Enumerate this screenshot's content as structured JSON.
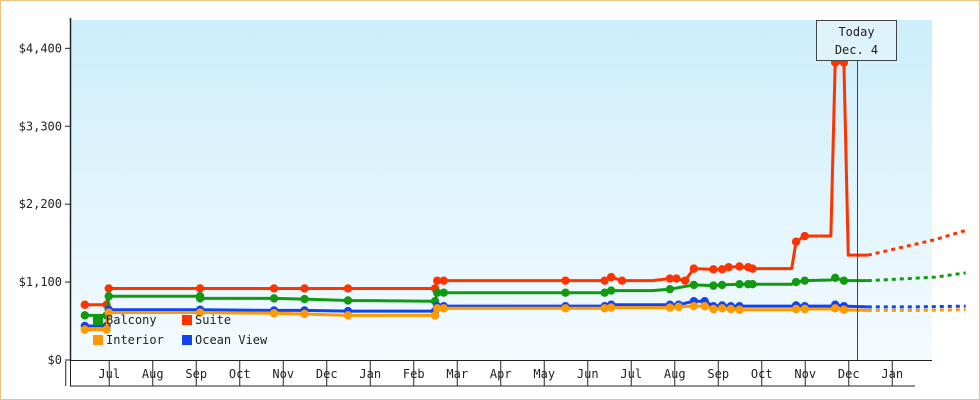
{
  "chart_data": {
    "type": "line",
    "title": "",
    "xlabel": "",
    "ylabel": "",
    "ylim": [
      0,
      4400
    ],
    "y_ticks": [
      {
        "value": 0,
        "label": "$0"
      },
      {
        "value": 1100,
        "label": "$1,100"
      },
      {
        "value": 2200,
        "label": "$2,200"
      },
      {
        "value": 3300,
        "label": "$3,300"
      },
      {
        "value": 4400,
        "label": "$4,400"
      }
    ],
    "x_range": [
      0,
      20
    ],
    "months": [
      {
        "label": "Jul",
        "x": 1
      },
      {
        "label": "Aug",
        "x": 2
      },
      {
        "label": "Sep",
        "x": 3
      },
      {
        "label": "Oct",
        "x": 4
      },
      {
        "label": "Nov",
        "x": 5
      },
      {
        "label": "Dec",
        "x": 6
      },
      {
        "label": "Jan",
        "x": 7
      },
      {
        "label": "Feb",
        "x": 8
      },
      {
        "label": "Mar",
        "x": 9
      },
      {
        "label": "Apr",
        "x": 10
      },
      {
        "label": "May",
        "x": 11
      },
      {
        "label": "Jun",
        "x": 12
      },
      {
        "label": "Jul",
        "x": 13
      },
      {
        "label": "Aug",
        "x": 14
      },
      {
        "label": "Sep",
        "x": 15
      },
      {
        "label": "Oct",
        "x": 16
      },
      {
        "label": "Nov",
        "x": 17
      },
      {
        "label": "Dec",
        "x": 18
      },
      {
        "label": "Jan",
        "x": 19
      }
    ],
    "today": {
      "x": 17.7,
      "line1": "Today",
      "line2": "Dec. 4"
    },
    "grid": false,
    "legend_position": "bottom-left",
    "background_gradient": [
      "#cdeefb",
      "#f4fbff"
    ],
    "series": [
      {
        "name": "Suite",
        "color": "#ff3300",
        "points": [
          [
            -0.05,
            780
          ],
          [
            0.45,
            780
          ],
          [
            0.5,
            1010
          ],
          [
            2.6,
            1010
          ],
          [
            4.3,
            1010
          ],
          [
            5.0,
            1010
          ],
          [
            6.0,
            1010
          ],
          [
            8.0,
            1010
          ],
          [
            8.05,
            1120
          ],
          [
            8.2,
            1120
          ],
          [
            11.0,
            1120
          ],
          [
            11.9,
            1120
          ],
          [
            12.05,
            1170
          ],
          [
            12.3,
            1120
          ],
          [
            13.0,
            1120
          ],
          [
            13.4,
            1150
          ],
          [
            13.55,
            1150
          ],
          [
            13.75,
            1120
          ],
          [
            13.95,
            1290
          ],
          [
            14.4,
            1280
          ],
          [
            14.6,
            1280
          ],
          [
            14.75,
            1310
          ],
          [
            15.0,
            1320
          ],
          [
            15.3,
            1290
          ],
          [
            16.2,
            1290
          ],
          [
            16.3,
            1670
          ],
          [
            16.5,
            1750
          ],
          [
            17.1,
            1750
          ],
          [
            17.2,
            4200
          ],
          [
            17.4,
            4200
          ],
          [
            17.5,
            1480
          ],
          [
            17.95,
            1480
          ]
        ],
        "markers": [
          [
            -0.05,
            780
          ],
          [
            0.45,
            780
          ],
          [
            0.5,
            1010
          ],
          [
            2.6,
            1010
          ],
          [
            4.3,
            1010
          ],
          [
            5.0,
            1010
          ],
          [
            6.0,
            1010
          ],
          [
            8.0,
            1010
          ],
          [
            8.05,
            1120
          ],
          [
            8.2,
            1120
          ],
          [
            11.0,
            1120
          ],
          [
            11.9,
            1120
          ],
          [
            12.05,
            1170
          ],
          [
            12.3,
            1120
          ],
          [
            13.4,
            1150
          ],
          [
            13.55,
            1150
          ],
          [
            13.75,
            1120
          ],
          [
            13.95,
            1290
          ],
          [
            14.4,
            1280
          ],
          [
            14.6,
            1280
          ],
          [
            14.75,
            1310
          ],
          [
            15.0,
            1320
          ],
          [
            15.2,
            1310
          ],
          [
            15.3,
            1290
          ],
          [
            16.3,
            1670
          ],
          [
            16.5,
            1750
          ],
          [
            17.2,
            4200
          ],
          [
            17.4,
            4200
          ]
        ],
        "forecast": [
          [
            17.95,
            1480
          ],
          [
            19.5,
            1700
          ],
          [
            20.2,
            1830
          ]
        ]
      },
      {
        "name": "Balcony",
        "color": "#119911",
        "points": [
          [
            -0.05,
            630
          ],
          [
            0.45,
            630
          ],
          [
            0.5,
            900
          ],
          [
            2.6,
            900
          ],
          [
            2.6,
            870
          ],
          [
            4.3,
            870
          ],
          [
            5.0,
            860
          ],
          [
            6.0,
            840
          ],
          [
            8.0,
            830
          ],
          [
            8.05,
            950
          ],
          [
            8.2,
            950
          ],
          [
            11.0,
            950
          ],
          [
            11.9,
            950
          ],
          [
            12.05,
            980
          ],
          [
            13.0,
            980
          ],
          [
            13.4,
            1000
          ],
          [
            13.95,
            1060
          ],
          [
            14.4,
            1050
          ],
          [
            14.6,
            1060
          ],
          [
            15.0,
            1070
          ],
          [
            15.3,
            1070
          ],
          [
            16.2,
            1070
          ],
          [
            16.3,
            1100
          ],
          [
            16.5,
            1120
          ],
          [
            17.1,
            1130
          ],
          [
            17.2,
            1160
          ],
          [
            17.4,
            1120
          ],
          [
            17.95,
            1120
          ]
        ],
        "markers": [
          [
            -0.05,
            630
          ],
          [
            0.45,
            630
          ],
          [
            0.5,
            900
          ],
          [
            2.6,
            900
          ],
          [
            2.6,
            870
          ],
          [
            4.3,
            870
          ],
          [
            5.0,
            860
          ],
          [
            6.0,
            840
          ],
          [
            8.0,
            830
          ],
          [
            8.05,
            950
          ],
          [
            8.2,
            950
          ],
          [
            11.0,
            950
          ],
          [
            11.9,
            950
          ],
          [
            12.05,
            980
          ],
          [
            13.4,
            1000
          ],
          [
            13.95,
            1060
          ],
          [
            14.4,
            1050
          ],
          [
            14.6,
            1060
          ],
          [
            15.0,
            1070
          ],
          [
            15.2,
            1070
          ],
          [
            15.3,
            1070
          ],
          [
            16.3,
            1100
          ],
          [
            16.5,
            1120
          ],
          [
            17.2,
            1160
          ],
          [
            17.4,
            1120
          ]
        ],
        "forecast": [
          [
            17.95,
            1120
          ],
          [
            19.5,
            1170
          ],
          [
            20.2,
            1230
          ]
        ]
      },
      {
        "name": "Ocean View",
        "color": "#1144ee",
        "points": [
          [
            -0.05,
            480
          ],
          [
            0.45,
            480
          ],
          [
            0.5,
            710
          ],
          [
            2.6,
            710
          ],
          [
            4.3,
            700
          ],
          [
            5.0,
            700
          ],
          [
            6.0,
            690
          ],
          [
            8.0,
            690
          ],
          [
            8.05,
            760
          ],
          [
            8.2,
            760
          ],
          [
            11.0,
            760
          ],
          [
            11.9,
            760
          ],
          [
            12.05,
            780
          ],
          [
            13.0,
            780
          ],
          [
            13.4,
            780
          ],
          [
            13.6,
            780
          ],
          [
            13.95,
            830
          ],
          [
            14.2,
            830
          ],
          [
            14.4,
            760
          ],
          [
            14.6,
            770
          ],
          [
            14.8,
            760
          ],
          [
            15.0,
            760
          ],
          [
            16.2,
            760
          ],
          [
            16.3,
            770
          ],
          [
            16.5,
            760
          ],
          [
            17.1,
            760
          ],
          [
            17.2,
            780
          ],
          [
            17.4,
            760
          ],
          [
            17.95,
            750
          ]
        ],
        "markers": [
          [
            -0.05,
            480
          ],
          [
            0.45,
            480
          ],
          [
            0.5,
            710
          ],
          [
            2.6,
            710
          ],
          [
            4.3,
            700
          ],
          [
            5.0,
            700
          ],
          [
            6.0,
            690
          ],
          [
            8.0,
            690
          ],
          [
            8.05,
            760
          ],
          [
            8.2,
            760
          ],
          [
            11.0,
            760
          ],
          [
            11.9,
            760
          ],
          [
            12.05,
            780
          ],
          [
            13.4,
            780
          ],
          [
            13.6,
            780
          ],
          [
            13.95,
            830
          ],
          [
            14.2,
            830
          ],
          [
            14.4,
            760
          ],
          [
            14.6,
            770
          ],
          [
            14.8,
            760
          ],
          [
            15.0,
            760
          ],
          [
            16.3,
            770
          ],
          [
            16.5,
            760
          ],
          [
            17.2,
            780
          ],
          [
            17.4,
            760
          ]
        ],
        "forecast": [
          [
            17.95,
            750
          ],
          [
            19.0,
            750
          ],
          [
            20.2,
            760
          ]
        ]
      },
      {
        "name": "Interior",
        "color": "#ff9900",
        "points": [
          [
            -0.05,
            430
          ],
          [
            0.45,
            430
          ],
          [
            0.5,
            670
          ],
          [
            2.6,
            670
          ],
          [
            4.3,
            660
          ],
          [
            5.0,
            650
          ],
          [
            6.0,
            630
          ],
          [
            8.0,
            630
          ],
          [
            8.05,
            730
          ],
          [
            8.2,
            730
          ],
          [
            11.0,
            730
          ],
          [
            11.9,
            730
          ],
          [
            12.05,
            740
          ],
          [
            13.0,
            740
          ],
          [
            13.4,
            740
          ],
          [
            13.6,
            750
          ],
          [
            13.95,
            760
          ],
          [
            14.2,
            760
          ],
          [
            14.4,
            720
          ],
          [
            14.6,
            730
          ],
          [
            14.8,
            720
          ],
          [
            15.0,
            710
          ],
          [
            16.2,
            710
          ],
          [
            16.3,
            720
          ],
          [
            16.5,
            720
          ],
          [
            17.1,
            720
          ],
          [
            17.2,
            730
          ],
          [
            17.4,
            710
          ],
          [
            17.95,
            700
          ]
        ],
        "markers": [
          [
            -0.05,
            430
          ],
          [
            0.45,
            430
          ],
          [
            0.5,
            670
          ],
          [
            2.6,
            670
          ],
          [
            4.3,
            660
          ],
          [
            5.0,
            650
          ],
          [
            6.0,
            630
          ],
          [
            8.0,
            630
          ],
          [
            8.05,
            730
          ],
          [
            8.2,
            730
          ],
          [
            11.0,
            730
          ],
          [
            11.9,
            730
          ],
          [
            12.05,
            740
          ],
          [
            13.4,
            740
          ],
          [
            13.6,
            750
          ],
          [
            13.95,
            760
          ],
          [
            14.2,
            760
          ],
          [
            14.4,
            720
          ],
          [
            14.6,
            730
          ],
          [
            14.8,
            720
          ],
          [
            15.0,
            710
          ],
          [
            16.3,
            720
          ],
          [
            16.5,
            720
          ],
          [
            17.2,
            730
          ],
          [
            17.4,
            710
          ]
        ],
        "forecast": [
          [
            17.95,
            700
          ],
          [
            19.0,
            700
          ],
          [
            20.2,
            710
          ]
        ]
      }
    ],
    "legend": [
      {
        "name": "Balcony",
        "color": "#119911"
      },
      {
        "name": "Suite",
        "color": "#ff3300"
      },
      {
        "name": "Interior",
        "color": "#ff9900"
      },
      {
        "name": "Ocean View",
        "color": "#1144ee"
      }
    ]
  }
}
